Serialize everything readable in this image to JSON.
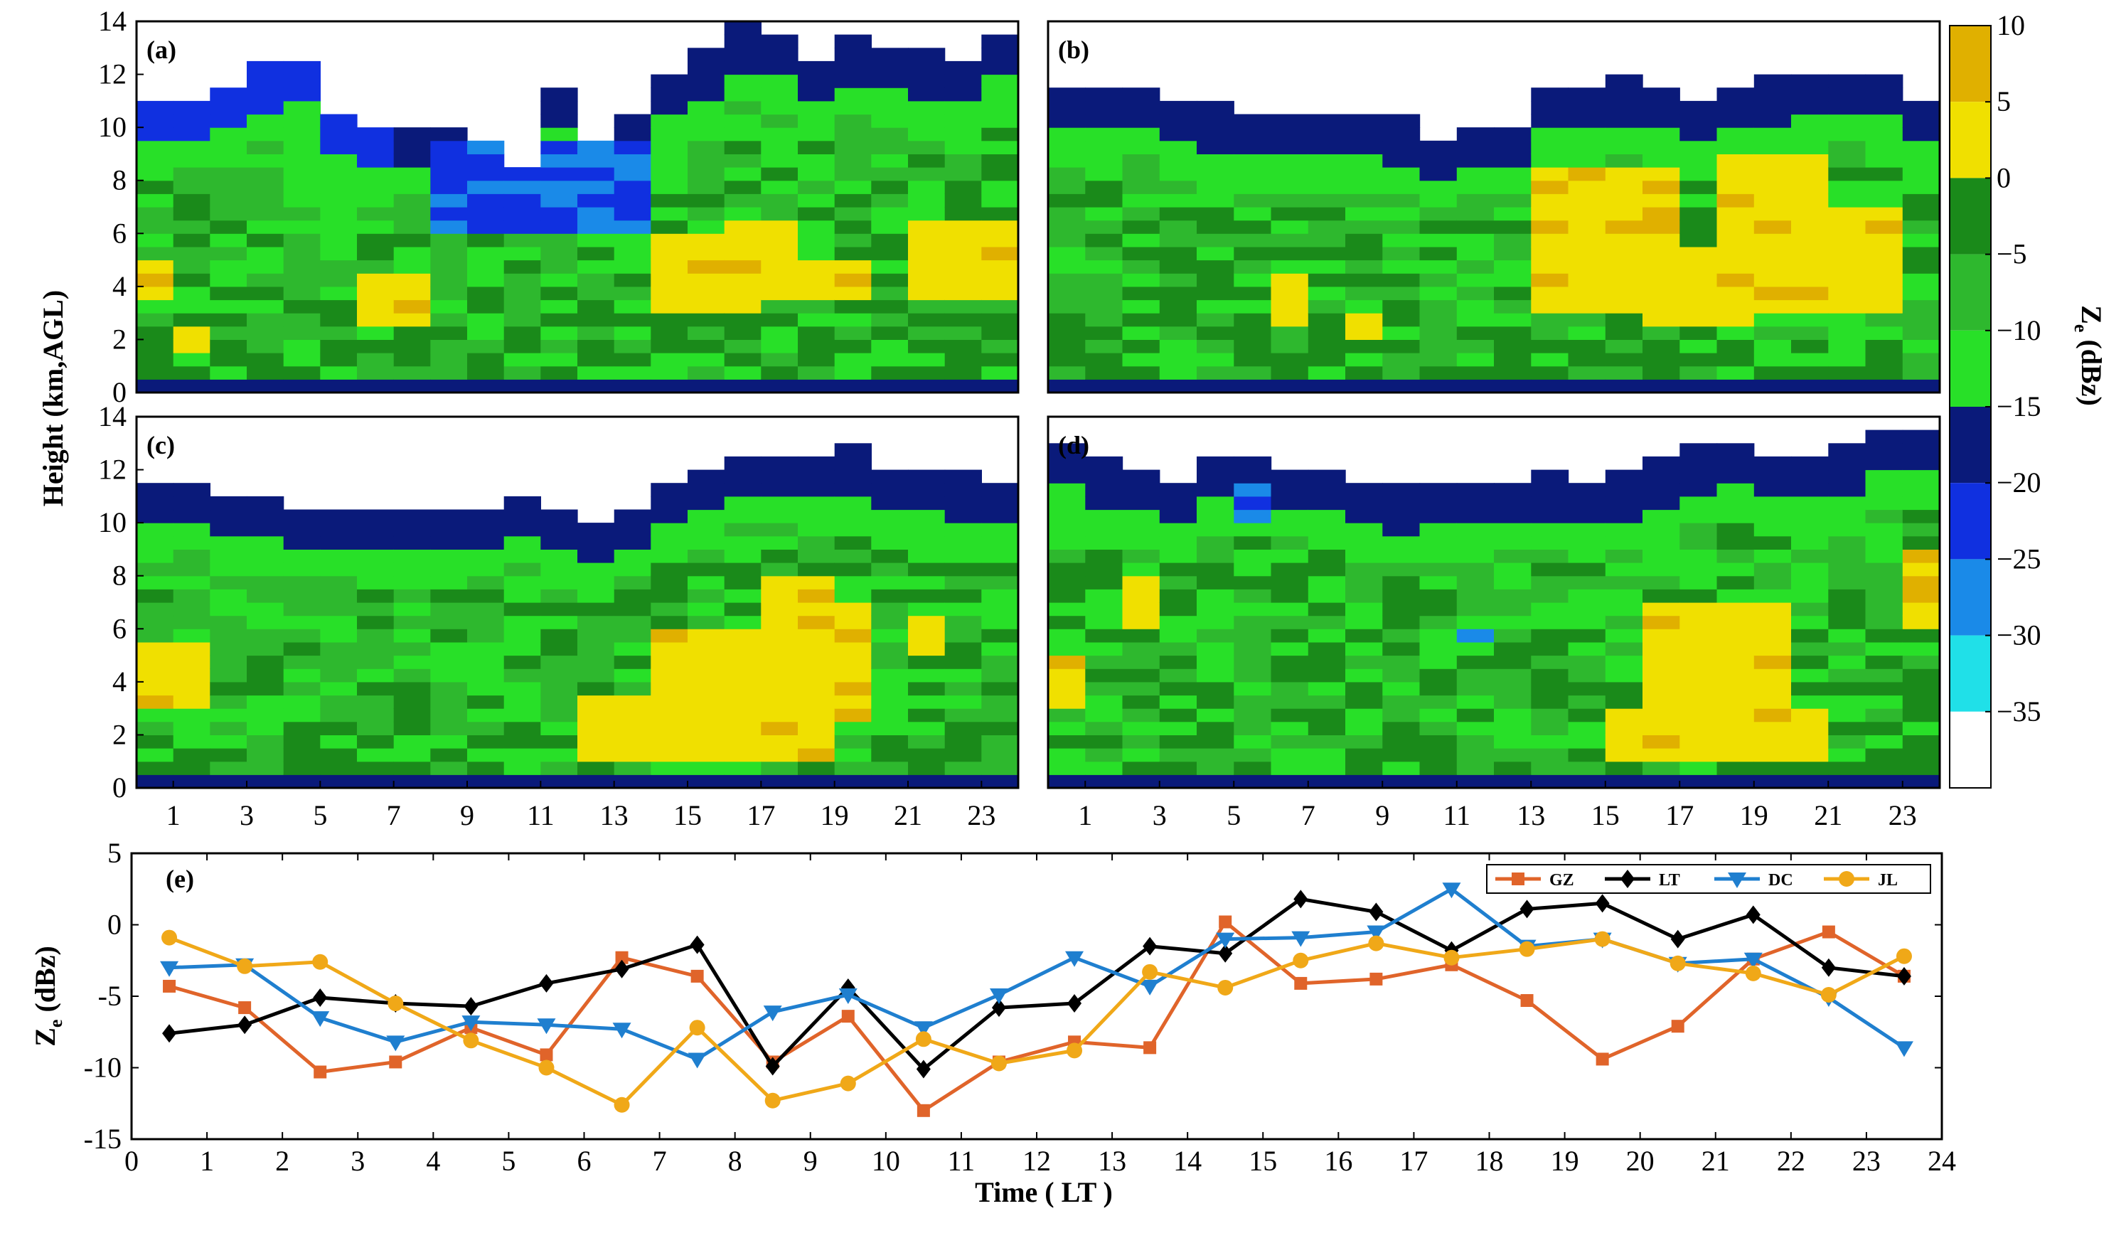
{
  "colors": {
    "background": "#ffffff",
    "frame": "#000000",
    "GZ": "#e0642a",
    "LT": "#000000",
    "DC": "#1f7fcf",
    "JL": "#f0a818"
  },
  "heatmap_panels": [
    {
      "label": "(a)"
    },
    {
      "label": "(b)"
    },
    {
      "label": "(c)"
    },
    {
      "label": "(d)"
    }
  ],
  "heatmap_axes": {
    "ylabel": "Height (km,AGL)",
    "yticks": [
      "0",
      "2",
      "4",
      "6",
      "8",
      "10",
      "12",
      "14"
    ],
    "xticks": [
      "1",
      "3",
      "5",
      "7",
      "9",
      "11",
      "13",
      "15",
      "17",
      "19",
      "21",
      "23"
    ]
  },
  "colorbar": {
    "label": "Ze (dBz)",
    "ticks": [
      "10",
      "5",
      "0",
      "−5",
      "−10",
      "−15",
      "−20",
      "−25",
      "−30",
      "−35"
    ],
    "bins": [
      {
        "from": 5,
        "to": 10,
        "color": "#e0b000"
      },
      {
        "from": 0,
        "to": 5,
        "color": "#f0e000"
      },
      {
        "from": -5,
        "to": 0,
        "color": "#1a8a1a"
      },
      {
        "from": -10,
        "to": -5,
        "color": "#2eb82e"
      },
      {
        "from": -15,
        "to": -10,
        "color": "#28e028"
      },
      {
        "from": -20,
        "to": -15,
        "color": "#0a1a7a"
      },
      {
        "from": -25,
        "to": -20,
        "color": "#1030e0"
      },
      {
        "from": -30,
        "to": -25,
        "color": "#1a8ae8"
      },
      {
        "from": -35,
        "to": -30,
        "color": "#20e0e8"
      },
      {
        "from": -40,
        "to": -35,
        "color": "#ffffff"
      }
    ]
  },
  "chart_data": [
    {
      "type": "heatmap",
      "panel": "(a)",
      "x_range": [
        0,
        24
      ],
      "y_range": [
        0,
        14
      ],
      "xlabel": "",
      "ylabel": "Height (km,AGL)",
      "cloud_top_km": [
        11.0,
        11.0,
        11.2,
        12.1,
        12.2,
        10.2,
        10.0,
        9.9,
        9.7,
        9.2,
        8.4,
        11.2,
        9.4,
        10.2,
        11.8,
        12.6,
        13.6,
        13.2,
        12.4,
        13.1,
        12.8,
        12.6,
        12.5,
        13.3
      ],
      "note": "Ze mostly -15 to -5 dBz in 2–8 km, cloud top -25 to -15 dBz; 0–5 dBz bands near 3–6 km at 15–17 LT and 21–23 LT"
    },
    {
      "type": "heatmap",
      "panel": "(b)",
      "x_range": [
        0,
        24
      ],
      "y_range": [
        0,
        14
      ],
      "cloud_top_km": [
        11.4,
        11.2,
        11.5,
        10.7,
        10.6,
        10.4,
        10.3,
        10.2,
        10.5,
        10.1,
        9.5,
        9.9,
        9.9,
        11.2,
        11.3,
        11.6,
        11.2,
        11.0,
        11.4,
        11.6,
        11.8,
        11.9,
        11.8,
        10.8
      ],
      "note": "Deep 0–5 dBz core 2–8 km between 14–22 LT"
    },
    {
      "type": "heatmap",
      "panel": "(c)",
      "x_range": [
        0,
        24
      ],
      "y_range": [
        0,
        14
      ],
      "cloud_top_km": [
        11.5,
        11.4,
        11.0,
        10.8,
        10.5,
        10.4,
        10.3,
        10.2,
        10.4,
        10.4,
        10.9,
        10.2,
        10.0,
        10.4,
        11.5,
        11.7,
        12.5,
        12.4,
        12.2,
        12.6,
        11.9,
        11.7,
        11.6,
        11.3
      ],
      "note": "0–5 dBz core 1–8 km between 14–20 LT"
    },
    {
      "type": "heatmap",
      "panel": "(d)",
      "x_range": [
        0,
        24
      ],
      "y_range": [
        0,
        14
      ],
      "cloud_top_km": [
        12.8,
        12.1,
        11.7,
        11.4,
        12.2,
        12.3,
        12.0,
        11.9,
        11.2,
        11.1,
        11.3,
        11.2,
        11.4,
        11.6,
        11.4,
        11.6,
        12.1,
        12.6,
        12.9,
        12.5,
        12.2,
        12.6,
        13.2,
        13.5
      ],
      "note": "0–5 dBz patches at 3–5 km near 1–3 LT and 15–23 LT"
    },
    {
      "type": "line",
      "panel": "(e)",
      "title": "",
      "xlabel": "Time ( LT )",
      "ylabel": "Ze (dBz)",
      "xlim": [
        0,
        24
      ],
      "ylim": [
        -15,
        5
      ],
      "xticks": [
        0,
        1,
        2,
        3,
        4,
        5,
        6,
        7,
        8,
        9,
        10,
        11,
        12,
        13,
        14,
        15,
        16,
        17,
        18,
        19,
        20,
        21,
        22,
        23,
        24
      ],
      "yticks": [
        5,
        0,
        -5,
        -10,
        -15
      ],
      "x": [
        0.5,
        1.5,
        2.5,
        3.5,
        4.5,
        5.5,
        6.5,
        7.5,
        8.5,
        9.5,
        10.5,
        11.5,
        12.5,
        13.5,
        14.5,
        15.5,
        16.5,
        17.5,
        18.5,
        19.5,
        20.5,
        21.5,
        22.5,
        23.5
      ],
      "legend_position": "top-right",
      "series": [
        {
          "name": "GZ",
          "marker": "square",
          "values": [
            -4.3,
            -5.8,
            -10.3,
            -9.6,
            -7.2,
            -9.1,
            -2.3,
            -3.6,
            -9.6,
            -6.4,
            -13.0,
            -9.6,
            -8.2,
            -8.6,
            0.2,
            -4.1,
            -3.8,
            -2.8,
            -5.3,
            -9.4,
            -7.1,
            -2.4,
            -0.5,
            -3.6
          ]
        },
        {
          "name": "LT",
          "marker": "diamond",
          "values": [
            -7.6,
            -7.0,
            -5.1,
            -5.5,
            -5.7,
            -4.1,
            -3.1,
            -1.4,
            -9.9,
            -4.4,
            -10.1,
            -5.8,
            -5.5,
            -1.5,
            -2.0,
            1.8,
            0.9,
            -1.8,
            1.1,
            1.5,
            -1.0,
            0.7,
            -3.0,
            -3.6
          ]
        },
        {
          "name": "DC",
          "marker": "triangle-down",
          "values": [
            -3.0,
            -2.8,
            -6.5,
            -8.2,
            -6.8,
            -7.0,
            -7.3,
            -9.4,
            -6.1,
            -4.9,
            -7.2,
            -4.9,
            -2.3,
            -4.3,
            -1.0,
            -0.9,
            -0.5,
            2.5,
            -1.5,
            -1.0,
            -2.7,
            -2.4,
            -5.1,
            -8.6
          ]
        },
        {
          "name": "JL",
          "marker": "circle",
          "values": [
            -0.9,
            -2.9,
            -2.6,
            -5.5,
            -8.1,
            -10.0,
            -12.6,
            -7.2,
            -12.3,
            -11.1,
            -8.0,
            -9.7,
            -8.8,
            -3.3,
            -4.4,
            -2.5,
            -1.3,
            -2.3,
            -1.7,
            -1.0,
            -2.7,
            -3.4,
            -4.9,
            -2.2
          ]
        }
      ]
    }
  ]
}
